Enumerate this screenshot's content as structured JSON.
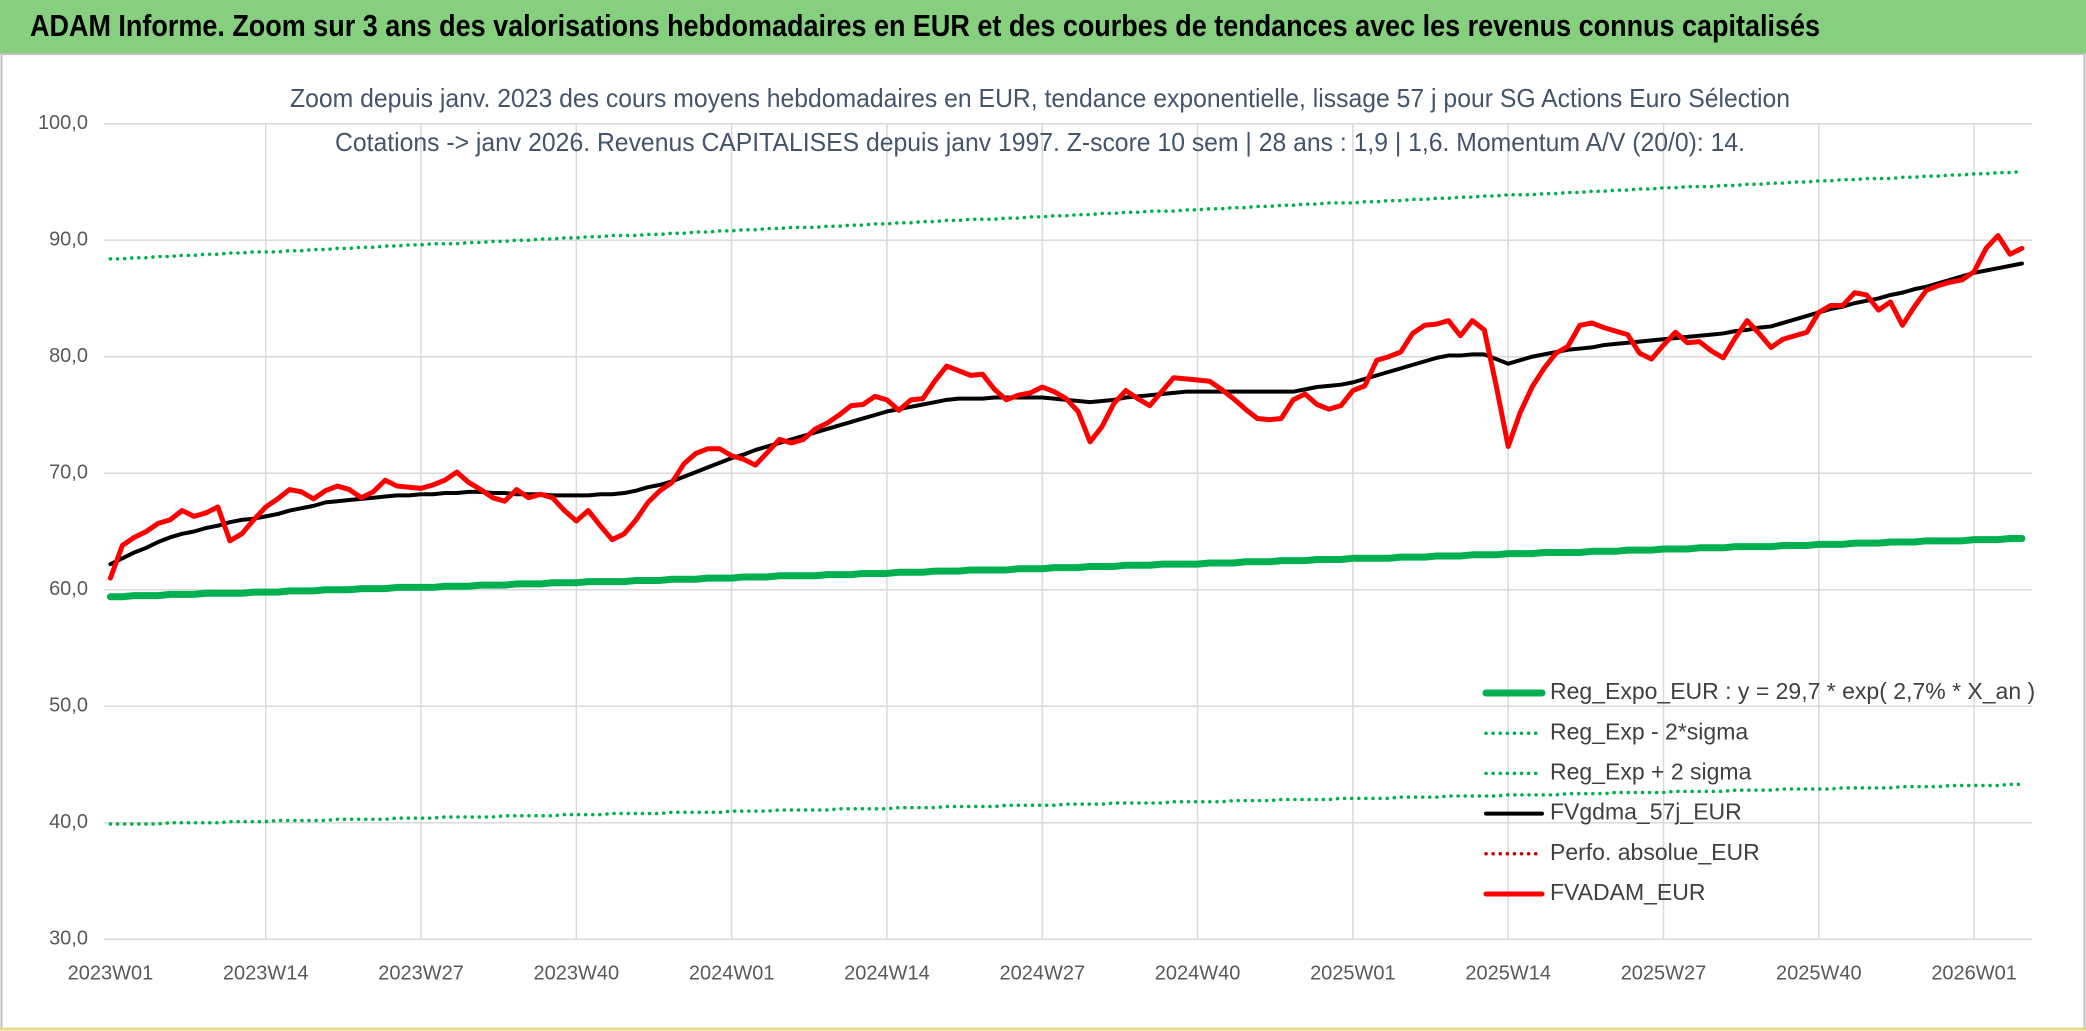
{
  "header": {
    "title": "ADAM Informe. Zoom sur 3 ans des valorisations hebdomadaires en EUR et des courbes de tendances avec les revenus connus capitalisés"
  },
  "chart_data": {
    "type": "line",
    "title": "Zoom depuis janv. 2023 des cours moyens hebdomadaires en EUR, tendance exponentielle, lissage 57 j pour SG Actions Euro Sélection",
    "subtitle": "Cotations -> janv 2026. Revenus CAPITALISES depuis janv 1997. Z-score 10 sem | 28 ans : 1,9 | 1,6. Momentum A/V (20/0): 14.",
    "categories": [
      "2023W01",
      null,
      null,
      null,
      null,
      null,
      null,
      null,
      null,
      null,
      null,
      null,
      null,
      "2023W14",
      null,
      null,
      null,
      null,
      null,
      null,
      null,
      null,
      null,
      null,
      null,
      null,
      "2023W27",
      null,
      null,
      null,
      null,
      null,
      null,
      null,
      null,
      null,
      null,
      null,
      null,
      "2023W40",
      null,
      null,
      null,
      null,
      null,
      null,
      null,
      null,
      null,
      null,
      null,
      null,
      "2024W01",
      null,
      null,
      null,
      null,
      null,
      null,
      null,
      null,
      null,
      null,
      null,
      null,
      "2024W14",
      null,
      null,
      null,
      null,
      null,
      null,
      null,
      null,
      null,
      null,
      null,
      null,
      "2024W27",
      null,
      null,
      null,
      null,
      null,
      null,
      null,
      null,
      null,
      null,
      null,
      null,
      "2024W40",
      null,
      null,
      null,
      null,
      null,
      null,
      null,
      null,
      null,
      null,
      null,
      null,
      "2025W01",
      null,
      null,
      null,
      null,
      null,
      null,
      null,
      null,
      null,
      null,
      null,
      null,
      "2025W14",
      null,
      null,
      null,
      null,
      null,
      null,
      null,
      null,
      null,
      null,
      null,
      null,
      "2025W27",
      null,
      null,
      null,
      null,
      null,
      null,
      null,
      null,
      null,
      null,
      null,
      null,
      "2025W40",
      null,
      null,
      null,
      null,
      null,
      null,
      null,
      null,
      null,
      null,
      null,
      null,
      "2026W01",
      null,
      null,
      null,
      null
    ],
    "ylim": [
      30,
      100
    ],
    "yticks": [
      {
        "value": 30,
        "label": "30,0"
      },
      {
        "value": 40,
        "label": "40,0"
      },
      {
        "value": 50,
        "label": "50,0"
      },
      {
        "value": 60,
        "label": "60,0"
      },
      {
        "value": 70,
        "label": "70,0"
      },
      {
        "value": 80,
        "label": "80,0"
      },
      {
        "value": 90,
        "label": "90,0"
      },
      {
        "value": 100,
        "label": "100,0"
      }
    ],
    "grid": true,
    "legend": "lower-right",
    "series": [
      {
        "name": "Reg_Expo_EUR : y = 29,7 * exp( 2,7% *  X_an )",
        "color": "#00b050",
        "style": "solid",
        "values": [
          59.4,
          59.4,
          59.5,
          59.5,
          59.5,
          59.6,
          59.6,
          59.6,
          59.7,
          59.7,
          59.7,
          59.7,
          59.8,
          59.8,
          59.8,
          59.9,
          59.9,
          59.9,
          60.0,
          60.0,
          60.0,
          60.1,
          60.1,
          60.1,
          60.2,
          60.2,
          60.2,
          60.2,
          60.3,
          60.3,
          60.3,
          60.4,
          60.4,
          60.4,
          60.5,
          60.5,
          60.5,
          60.6,
          60.6,
          60.6,
          60.7,
          60.7,
          60.7,
          60.7,
          60.8,
          60.8,
          60.8,
          60.9,
          60.9,
          60.9,
          61.0,
          61.0,
          61.0,
          61.1,
          61.1,
          61.1,
          61.2,
          61.2,
          61.2,
          61.2,
          61.3,
          61.3,
          61.3,
          61.4,
          61.4,
          61.4,
          61.5,
          61.5,
          61.5,
          61.6,
          61.6,
          61.6,
          61.7,
          61.7,
          61.7,
          61.7,
          61.8,
          61.8,
          61.8,
          61.9,
          61.9,
          61.9,
          62.0,
          62.0,
          62.0,
          62.1,
          62.1,
          62.1,
          62.2,
          62.2,
          62.2,
          62.2,
          62.3,
          62.3,
          62.3,
          62.4,
          62.4,
          62.4,
          62.5,
          62.5,
          62.5,
          62.6,
          62.6,
          62.6,
          62.7,
          62.7,
          62.7,
          62.7,
          62.8,
          62.8,
          62.8,
          62.9,
          62.9,
          62.9,
          63.0,
          63.0,
          63.0,
          63.1,
          63.1,
          63.1,
          63.2,
          63.2,
          63.2,
          63.2,
          63.3,
          63.3,
          63.3,
          63.4,
          63.4,
          63.4,
          63.5,
          63.5,
          63.5,
          63.6,
          63.6,
          63.6,
          63.7,
          63.7,
          63.7,
          63.7,
          63.8,
          63.8,
          63.8,
          63.9,
          63.9,
          63.9,
          64.0,
          64.0,
          64.0,
          64.1,
          64.1,
          64.1,
          64.2,
          64.2,
          64.2,
          64.2,
          64.3,
          64.3,
          64.3,
          64.4,
          64.4
        ]
      },
      {
        "name": "Reg_Exp - 2*sigma",
        "color": "#00b050",
        "style": "dotted",
        "values": [
          39.9,
          39.9,
          39.9,
          39.9,
          39.9,
          40.0,
          40.0,
          40.0,
          40.0,
          40.0,
          40.1,
          40.1,
          40.1,
          40.1,
          40.2,
          40.2,
          40.2,
          40.2,
          40.2,
          40.3,
          40.3,
          40.3,
          40.3,
          40.3,
          40.4,
          40.4,
          40.4,
          40.4,
          40.5,
          40.5,
          40.5,
          40.5,
          40.5,
          40.6,
          40.6,
          40.6,
          40.6,
          40.6,
          40.7,
          40.7,
          40.7,
          40.7,
          40.8,
          40.8,
          40.8,
          40.8,
          40.8,
          40.9,
          40.9,
          40.9,
          40.9,
          40.9,
          41.0,
          41.0,
          41.0,
          41.0,
          41.1,
          41.1,
          41.1,
          41.1,
          41.1,
          41.2,
          41.2,
          41.2,
          41.2,
          41.2,
          41.3,
          41.3,
          41.3,
          41.3,
          41.4,
          41.4,
          41.4,
          41.4,
          41.4,
          41.5,
          41.5,
          41.5,
          41.5,
          41.5,
          41.6,
          41.6,
          41.6,
          41.6,
          41.7,
          41.7,
          41.7,
          41.7,
          41.7,
          41.8,
          41.8,
          41.8,
          41.8,
          41.8,
          41.9,
          41.9,
          41.9,
          41.9,
          42.0,
          42.0,
          42.0,
          42.0,
          42.0,
          42.1,
          42.1,
          42.1,
          42.1,
          42.1,
          42.2,
          42.2,
          42.2,
          42.2,
          42.3,
          42.3,
          42.3,
          42.3,
          42.3,
          42.4,
          42.4,
          42.4,
          42.4,
          42.4,
          42.5,
          42.5,
          42.5,
          42.5,
          42.6,
          42.6,
          42.6,
          42.6,
          42.6,
          42.7,
          42.7,
          42.7,
          42.7,
          42.7,
          42.8,
          42.8,
          42.8,
          42.8,
          42.9,
          42.9,
          42.9,
          42.9,
          42.9,
          43.0,
          43.0,
          43.0,
          43.0,
          43.0,
          43.1,
          43.1,
          43.1,
          43.1,
          43.2,
          43.2,
          43.2,
          43.2,
          43.2,
          43.3,
          43.3
        ]
      },
      {
        "name": "Reg_Exp + 2 sigma",
        "color": "#00b050",
        "style": "dotted",
        "values": [
          88.4,
          88.4,
          88.5,
          88.5,
          88.6,
          88.6,
          88.7,
          88.7,
          88.8,
          88.8,
          88.9,
          88.9,
          89.0,
          89.0,
          89.0,
          89.1,
          89.1,
          89.2,
          89.2,
          89.3,
          89.3,
          89.4,
          89.4,
          89.5,
          89.5,
          89.6,
          89.6,
          89.7,
          89.7,
          89.7,
          89.8,
          89.8,
          89.9,
          89.9,
          90.0,
          90.0,
          90.1,
          90.1,
          90.2,
          90.2,
          90.3,
          90.3,
          90.4,
          90.4,
          90.4,
          90.5,
          90.5,
          90.6,
          90.6,
          90.7,
          90.7,
          90.8,
          90.8,
          90.9,
          90.9,
          91.0,
          91.0,
          91.1,
          91.1,
          91.1,
          91.2,
          91.2,
          91.3,
          91.3,
          91.4,
          91.4,
          91.5,
          91.5,
          91.6,
          91.6,
          91.7,
          91.7,
          91.8,
          91.8,
          91.8,
          91.9,
          91.9,
          92.0,
          92.0,
          92.1,
          92.1,
          92.2,
          92.2,
          92.3,
          92.3,
          92.4,
          92.4,
          92.5,
          92.5,
          92.5,
          92.6,
          92.6,
          92.7,
          92.7,
          92.8,
          92.8,
          92.9,
          92.9,
          93.0,
          93.0,
          93.1,
          93.1,
          93.2,
          93.2,
          93.2,
          93.3,
          93.3,
          93.4,
          93.4,
          93.5,
          93.5,
          93.6,
          93.6,
          93.7,
          93.7,
          93.8,
          93.8,
          93.9,
          93.9,
          93.9,
          94.0,
          94.0,
          94.1,
          94.1,
          94.2,
          94.2,
          94.3,
          94.3,
          94.4,
          94.4,
          94.5,
          94.5,
          94.6,
          94.6,
          94.6,
          94.7,
          94.7,
          94.8,
          94.8,
          94.9,
          94.9,
          95.0,
          95.0,
          95.1,
          95.1,
          95.2,
          95.2,
          95.3,
          95.3,
          95.3,
          95.4,
          95.4,
          95.5,
          95.5,
          95.6,
          95.6,
          95.7,
          95.7,
          95.8,
          95.8,
          95.9
        ]
      },
      {
        "name": "FVgdma_57j_EUR",
        "color": "#000000",
        "style": "solid",
        "values": [
          62.2,
          62.7,
          63.2,
          63.6,
          64.1,
          64.5,
          64.8,
          65.0,
          65.3,
          65.5,
          65.8,
          66.0,
          66.1,
          66.3,
          66.5,
          66.8,
          67.0,
          67.2,
          67.5,
          67.6,
          67.7,
          67.8,
          67.9,
          68.0,
          68.1,
          68.1,
          68.2,
          68.2,
          68.3,
          68.3,
          68.4,
          68.4,
          68.3,
          68.3,
          68.2,
          68.2,
          68.2,
          68.1,
          68.1,
          68.1,
          68.1,
          68.2,
          68.2,
          68.3,
          68.5,
          68.8,
          69.0,
          69.3,
          69.7,
          70.1,
          70.5,
          70.9,
          71.3,
          71.6,
          72.0,
          72.3,
          72.6,
          72.9,
          73.2,
          73.5,
          73.8,
          74.1,
          74.4,
          74.7,
          75.0,
          75.3,
          75.5,
          75.7,
          75.9,
          76.1,
          76.3,
          76.4,
          76.4,
          76.4,
          76.5,
          76.5,
          76.5,
          76.5,
          76.5,
          76.4,
          76.3,
          76.2,
          76.1,
          76.2,
          76.3,
          76.5,
          76.6,
          76.7,
          76.8,
          76.9,
          77.0,
          77.0,
          77.0,
          77.0,
          77.0,
          77.0,
          77.0,
          77.0,
          77.0,
          77.0,
          77.2,
          77.4,
          77.5,
          77.6,
          77.8,
          78.1,
          78.4,
          78.7,
          79.0,
          79.3,
          79.6,
          79.9,
          80.1,
          80.1,
          80.2,
          80.2,
          79.8,
          79.4,
          79.7,
          80.0,
          80.2,
          80.4,
          80.6,
          80.7,
          80.8,
          81.0,
          81.1,
          81.2,
          81.3,
          81.4,
          81.5,
          81.6,
          81.7,
          81.8,
          81.9,
          82.0,
          82.2,
          82.3,
          82.5,
          82.6,
          82.9,
          83.2,
          83.5,
          83.8,
          84.1,
          84.3,
          84.6,
          84.8,
          85.0,
          85.3,
          85.5,
          85.8,
          86.0,
          86.3,
          86.6,
          86.9,
          87.2,
          87.4,
          87.6,
          87.8,
          88.0
        ]
      },
      {
        "name": "Perfo. absolue_EUR",
        "color": "#c00000",
        "style": "dotted",
        "values": [
          null,
          null,
          null,
          null,
          null,
          null,
          null,
          null,
          null,
          null,
          null,
          null,
          null,
          null,
          null,
          null,
          null,
          null,
          null,
          null,
          null,
          null,
          null,
          null,
          null,
          null,
          null,
          null,
          null,
          null,
          null,
          null,
          null,
          null,
          null,
          null,
          null,
          null,
          null,
          null,
          null,
          null,
          null,
          null,
          null,
          null,
          null,
          null,
          null,
          null,
          null,
          null,
          null,
          null,
          null,
          null,
          null,
          null,
          null,
          null,
          null,
          null,
          null,
          null,
          null,
          null,
          null,
          null,
          null,
          null,
          null,
          null,
          null,
          null,
          null,
          null,
          null,
          null,
          null,
          null,
          null,
          null,
          null,
          null,
          null,
          null,
          null,
          null,
          null,
          null,
          null,
          null,
          null,
          null,
          null,
          null,
          null,
          null,
          null,
          null,
          null,
          null,
          null,
          null,
          null,
          null,
          null,
          null,
          null,
          null,
          null,
          null,
          null,
          null,
          null,
          null,
          null,
          null,
          null,
          null,
          null,
          null,
          null,
          null,
          null,
          null,
          null,
          null,
          null,
          null,
          null,
          null,
          null,
          null,
          null,
          null,
          null,
          null,
          null,
          null,
          null,
          null,
          null,
          null,
          null,
          null,
          null,
          null,
          null,
          null,
          null,
          null,
          null,
          null,
          null,
          null,
          null,
          null,
          null,
          null,
          null
        ]
      },
      {
        "name": "FVADAM_EUR",
        "color": "#ff0000",
        "style": "solid",
        "values": [
          61.0,
          63.8,
          64.5,
          65.0,
          65.7,
          66.0,
          66.8,
          66.3,
          66.6,
          67.1,
          64.2,
          64.8,
          66.0,
          67.1,
          67.8,
          68.6,
          68.4,
          67.8,
          68.5,
          68.9,
          68.6,
          67.9,
          68.4,
          69.4,
          68.9,
          68.8,
          68.7,
          69.0,
          69.4,
          70.1,
          69.2,
          68.6,
          67.9,
          67.6,
          68.6,
          67.9,
          68.2,
          67.9,
          66.8,
          65.9,
          66.8,
          65.5,
          64.3,
          64.8,
          66.0,
          67.5,
          68.5,
          69.2,
          70.8,
          71.7,
          72.1,
          72.1,
          71.5,
          71.2,
          70.7,
          71.8,
          72.9,
          72.6,
          72.9,
          73.8,
          74.3,
          75.0,
          75.8,
          75.9,
          76.6,
          76.3,
          75.4,
          76.3,
          76.4,
          77.9,
          79.2,
          78.8,
          78.4,
          78.5,
          77.2,
          76.3,
          76.7,
          76.9,
          77.4,
          77.0,
          76.4,
          75.3,
          72.7,
          74.0,
          76.0,
          77.1,
          76.4,
          75.8,
          77.0,
          78.2,
          78.1,
          78.0,
          77.9,
          77.2,
          76.4,
          75.5,
          74.7,
          74.6,
          74.7,
          76.3,
          76.8,
          75.9,
          75.5,
          75.8,
          77.1,
          77.5,
          79.7,
          80.0,
          80.4,
          82.0,
          82.7,
          82.8,
          83.1,
          81.8,
          83.1,
          82.3,
          77.5,
          72.3,
          75.2,
          77.4,
          79.0,
          80.3,
          80.9,
          82.7,
          82.9,
          82.5,
          82.2,
          81.9,
          80.3,
          79.8,
          81.0,
          82.1,
          81.2,
          81.3,
          80.5,
          79.9,
          81.6,
          83.1,
          82.0,
          80.8,
          81.5,
          81.8,
          82.1,
          83.8,
          84.4,
          84.4,
          85.5,
          85.3,
          84.0,
          84.7,
          82.7,
          84.3,
          85.7,
          86.1,
          86.4,
          86.6,
          87.3,
          89.3,
          90.4,
          88.8,
          89.3
        ]
      }
    ]
  }
}
